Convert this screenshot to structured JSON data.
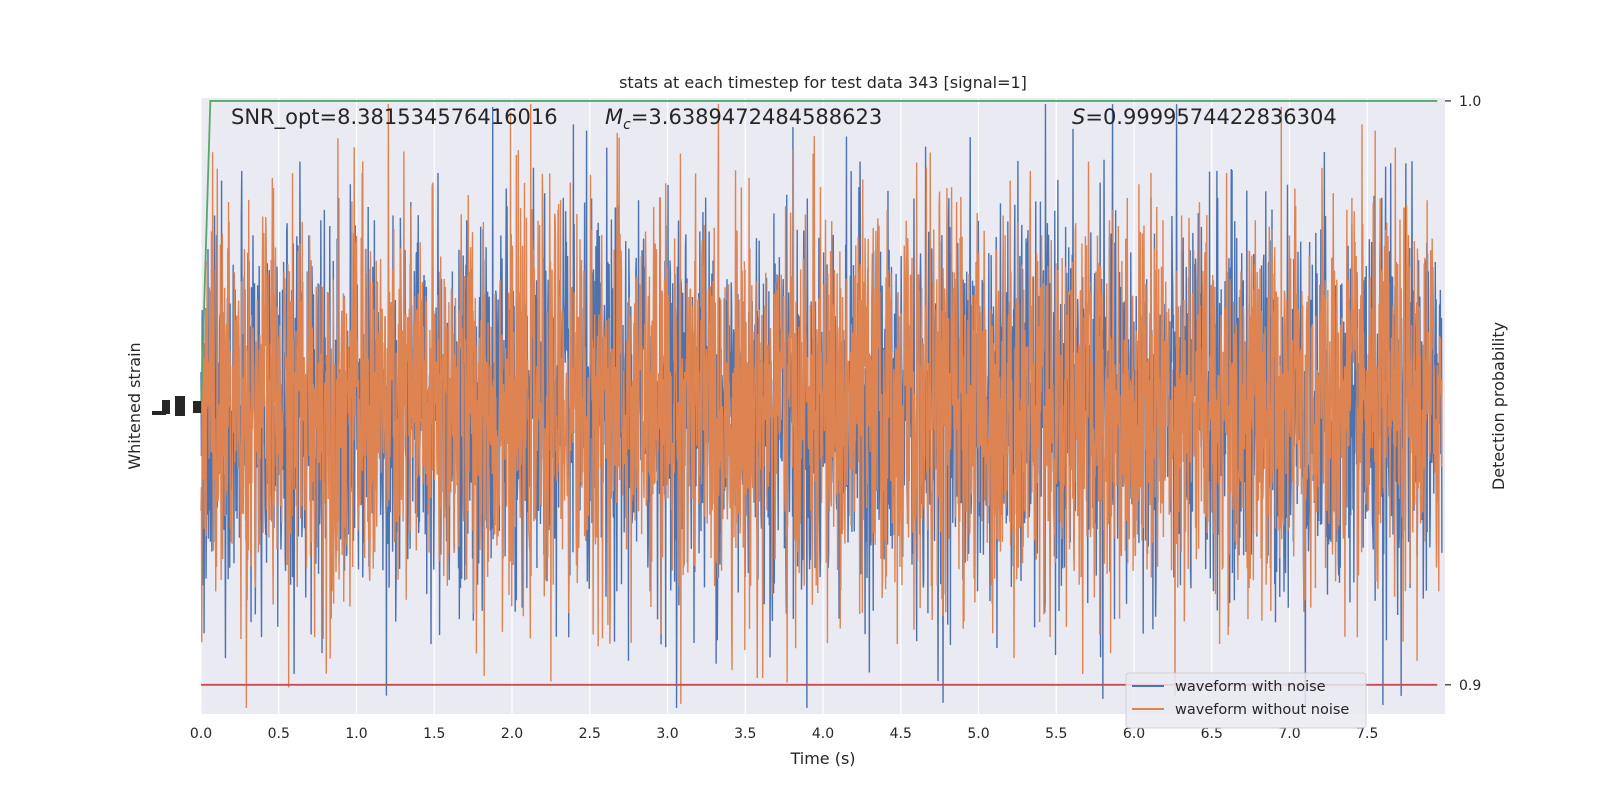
{
  "chart_data": {
    "type": "line",
    "title": "stats at each timestep for test data 343 [signal=1]",
    "xlabel": "Time (s)",
    "ylabel_left": "Whitened strain",
    "ylabel_right": "Detection probability",
    "xlim": [
      0.0,
      8.0
    ],
    "xticks": [
      "0.0",
      "0.5",
      "1.0",
      "1.5",
      "2.0",
      "2.5",
      "3.0",
      "3.5",
      "4.0",
      "4.5",
      "5.0",
      "5.5",
      "6.0",
      "6.5",
      "7.0",
      "7.5"
    ],
    "xtick_values": [
      0.0,
      0.5,
      1.0,
      1.5,
      2.0,
      2.5,
      3.0,
      3.5,
      4.0,
      4.5,
      5.0,
      5.5,
      6.0,
      6.5,
      7.0,
      7.5
    ],
    "left_ylim": [
      -1.0,
      1.0
    ],
    "right_ylim": [
      0.895,
      1.0005
    ],
    "right_ticks": [
      "0.9",
      "1.0"
    ],
    "right_tick_values": [
      0.9,
      1.0
    ],
    "grid": true,
    "annotations": {
      "snr": "SNR_opt=8.381534576416016",
      "mc": "=3.6389472484588623",
      "mc_symbol": "M",
      "mc_sub": "c",
      "s_symbol": "S",
      "s": "=0.9999574422836304"
    },
    "series": [
      {
        "name": "waveform with noise",
        "color": "#4c72b0",
        "kind": "noise",
        "amplitude": 0.32
      },
      {
        "name": "waveform without noise",
        "color": "#dd8452",
        "kind": "noise",
        "amplitude": 0.32
      },
      {
        "color": "#55a868",
        "axis": "right",
        "x": [
          0.0,
          0.06,
          0.1,
          0.2,
          1.0,
          2.0,
          3.0,
          4.0,
          5.0,
          6.0,
          7.0,
          7.95
        ],
        "y": [
          0.947,
          1.0,
          1.0,
          1.0,
          1.0,
          1.0,
          1.0,
          1.0,
          1.0,
          1.0,
          1.0,
          1.0
        ]
      },
      {
        "color": "#c44e52",
        "axis": "right",
        "x": [
          0.0,
          7.95
        ],
        "y": [
          0.9,
          0.9
        ]
      }
    ],
    "legend_position": "lower-right",
    "colors": {
      "background": "#eaeaf2",
      "grid": "#ffffff",
      "text": "#262626"
    }
  }
}
